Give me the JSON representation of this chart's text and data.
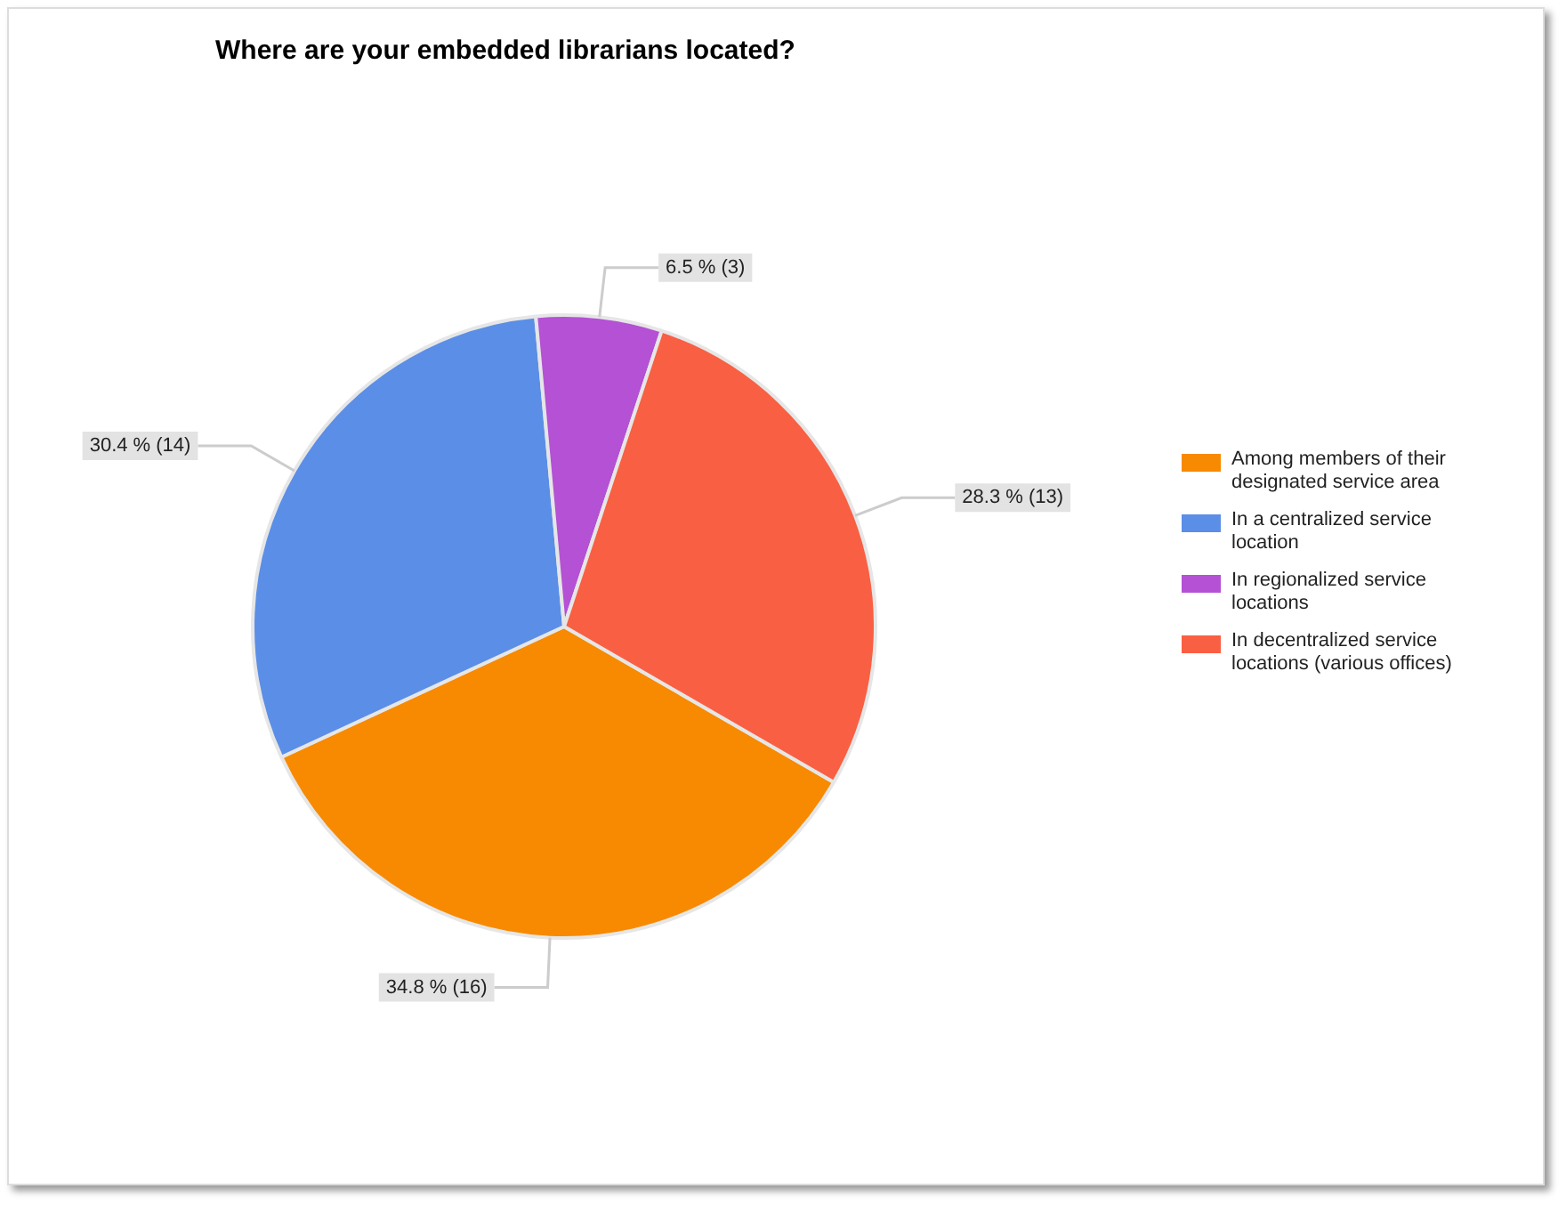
{
  "chart_data": {
    "type": "pie",
    "title": "Where are your embedded librarians located?",
    "categories": [
      "Among members of their designated service area",
      "In a centralized service location",
      "In regionalized service locations",
      "In decentralized service locations (various offices)"
    ],
    "values": [
      16,
      14,
      3,
      13
    ],
    "colors": [
      "#f78a00",
      "#5b8ee6",
      "#b451d4",
      "#f95f42"
    ],
    "value_labels": [
      "34.8 % (16)",
      "30.4 % (14)",
      "6.5 % (3)",
      "28.3 % (13)"
    ],
    "legend": "right"
  }
}
